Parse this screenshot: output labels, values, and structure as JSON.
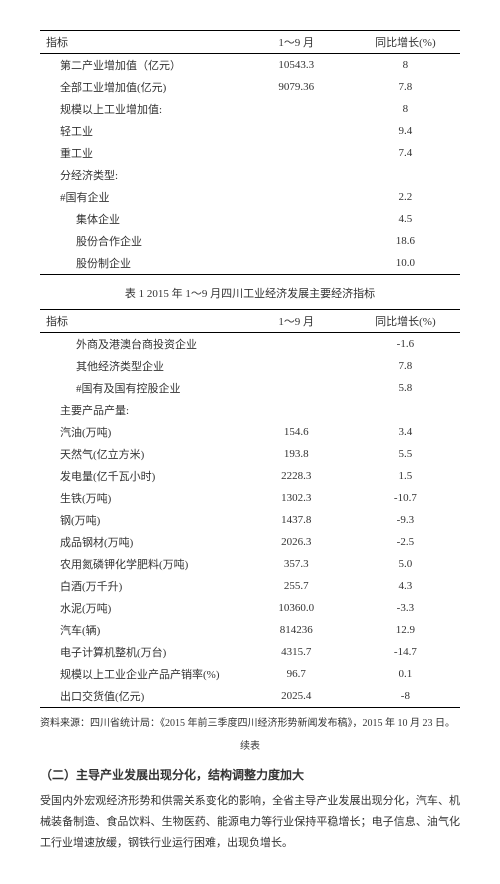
{
  "tableHeaders": {
    "indicator": "指标",
    "period": "1～9 月",
    "yoy": "同比增长(%)"
  },
  "table1": {
    "rows": [
      {
        "ind": "第二产业增加值（亿元）",
        "val": "10543.3",
        "pct": "8",
        "indent": 1
      },
      {
        "ind": "全部工业增加值(亿元)",
        "val": "9079.36",
        "pct": "7.8",
        "indent": 1
      },
      {
        "ind": "规模以上工业增加值:",
        "val": "",
        "pct": "8",
        "indent": 1
      },
      {
        "ind": "轻工业",
        "val": "",
        "pct": "9.4",
        "indent": 1
      },
      {
        "ind": "重工业",
        "val": "",
        "pct": "7.4",
        "indent": 1
      },
      {
        "ind": "分经济类型:",
        "val": "",
        "pct": "",
        "indent": 1
      },
      {
        "ind": "#国有企业",
        "val": "",
        "pct": "2.2",
        "indent": 1
      },
      {
        "ind": "集体企业",
        "val": "",
        "pct": "4.5",
        "indent": 2
      },
      {
        "ind": "股份合作企业",
        "val": "",
        "pct": "18.6",
        "indent": 2
      },
      {
        "ind": "股份制企业",
        "val": "",
        "pct": "10.0",
        "indent": 2
      }
    ]
  },
  "caption1": "表 1 2015 年 1～9 月四川工业经济发展主要经济指标",
  "table2": {
    "rows": [
      {
        "ind": "外商及港澳台商投资企业",
        "val": "",
        "pct": "-1.6",
        "indent": 2
      },
      {
        "ind": "其他经济类型企业",
        "val": "",
        "pct": "7.8",
        "indent": 2
      },
      {
        "ind": "#国有及国有控股企业",
        "val": "",
        "pct": "5.8",
        "indent": 2
      },
      {
        "ind": "主要产品产量:",
        "val": "",
        "pct": "",
        "indent": 1
      },
      {
        "ind": "汽油(万吨)",
        "val": "154.6",
        "pct": "3.4",
        "indent": 1
      },
      {
        "ind": "天然气(亿立方米)",
        "val": "193.8",
        "pct": "5.5",
        "indent": 1
      },
      {
        "ind": "发电量(亿千瓦小时)",
        "val": "2228.3",
        "pct": "1.5",
        "indent": 1
      },
      {
        "ind": "生铁(万吨)",
        "val": "1302.3",
        "pct": "-10.7",
        "indent": 1
      },
      {
        "ind": "钢(万吨)",
        "val": "1437.8",
        "pct": "-9.3",
        "indent": 1
      },
      {
        "ind": "成品钢材(万吨)",
        "val": "2026.3",
        "pct": "-2.5",
        "indent": 1
      },
      {
        "ind": "农用氮磷钾化学肥料(万吨)",
        "val": "357.3",
        "pct": "5.0",
        "indent": 1
      },
      {
        "ind": "白酒(万千升)",
        "val": "255.7",
        "pct": "4.3",
        "indent": 1
      },
      {
        "ind": "水泥(万吨)",
        "val": "10360.0",
        "pct": "-3.3",
        "indent": 1
      },
      {
        "ind": "汽车(辆)",
        "val": "814236",
        "pct": "12.9",
        "indent": 1
      },
      {
        "ind": "电子计算机整机(万台)",
        "val": "4315.7",
        "pct": "-14.7",
        "indent": 1
      },
      {
        "ind": "规模以上工业企业产品产销率(%)",
        "val": "96.7",
        "pct": "0.1",
        "indent": 1
      },
      {
        "ind": "出口交货值(亿元)",
        "val": "2025.4",
        "pct": "-8",
        "indent": 1
      }
    ]
  },
  "source": "资料来源：四川省统计局：《2015 年前三季度四川经济形势新闻发布稿》，2015 年 10 月 23 日。",
  "cont": "续表",
  "heading": "（二）主导产业发展出现分化，结构调整力度加大",
  "para": "受国内外宏观经济形势和供需关系变化的影响，全省主导产业发展出现分化，汽车、机械装备制造、食品饮料、生物医药、能源电力等行业保持平稳增长；电子信息、油气化工行业增速放缓，钢铁行业运行困难，出现负增长。"
}
